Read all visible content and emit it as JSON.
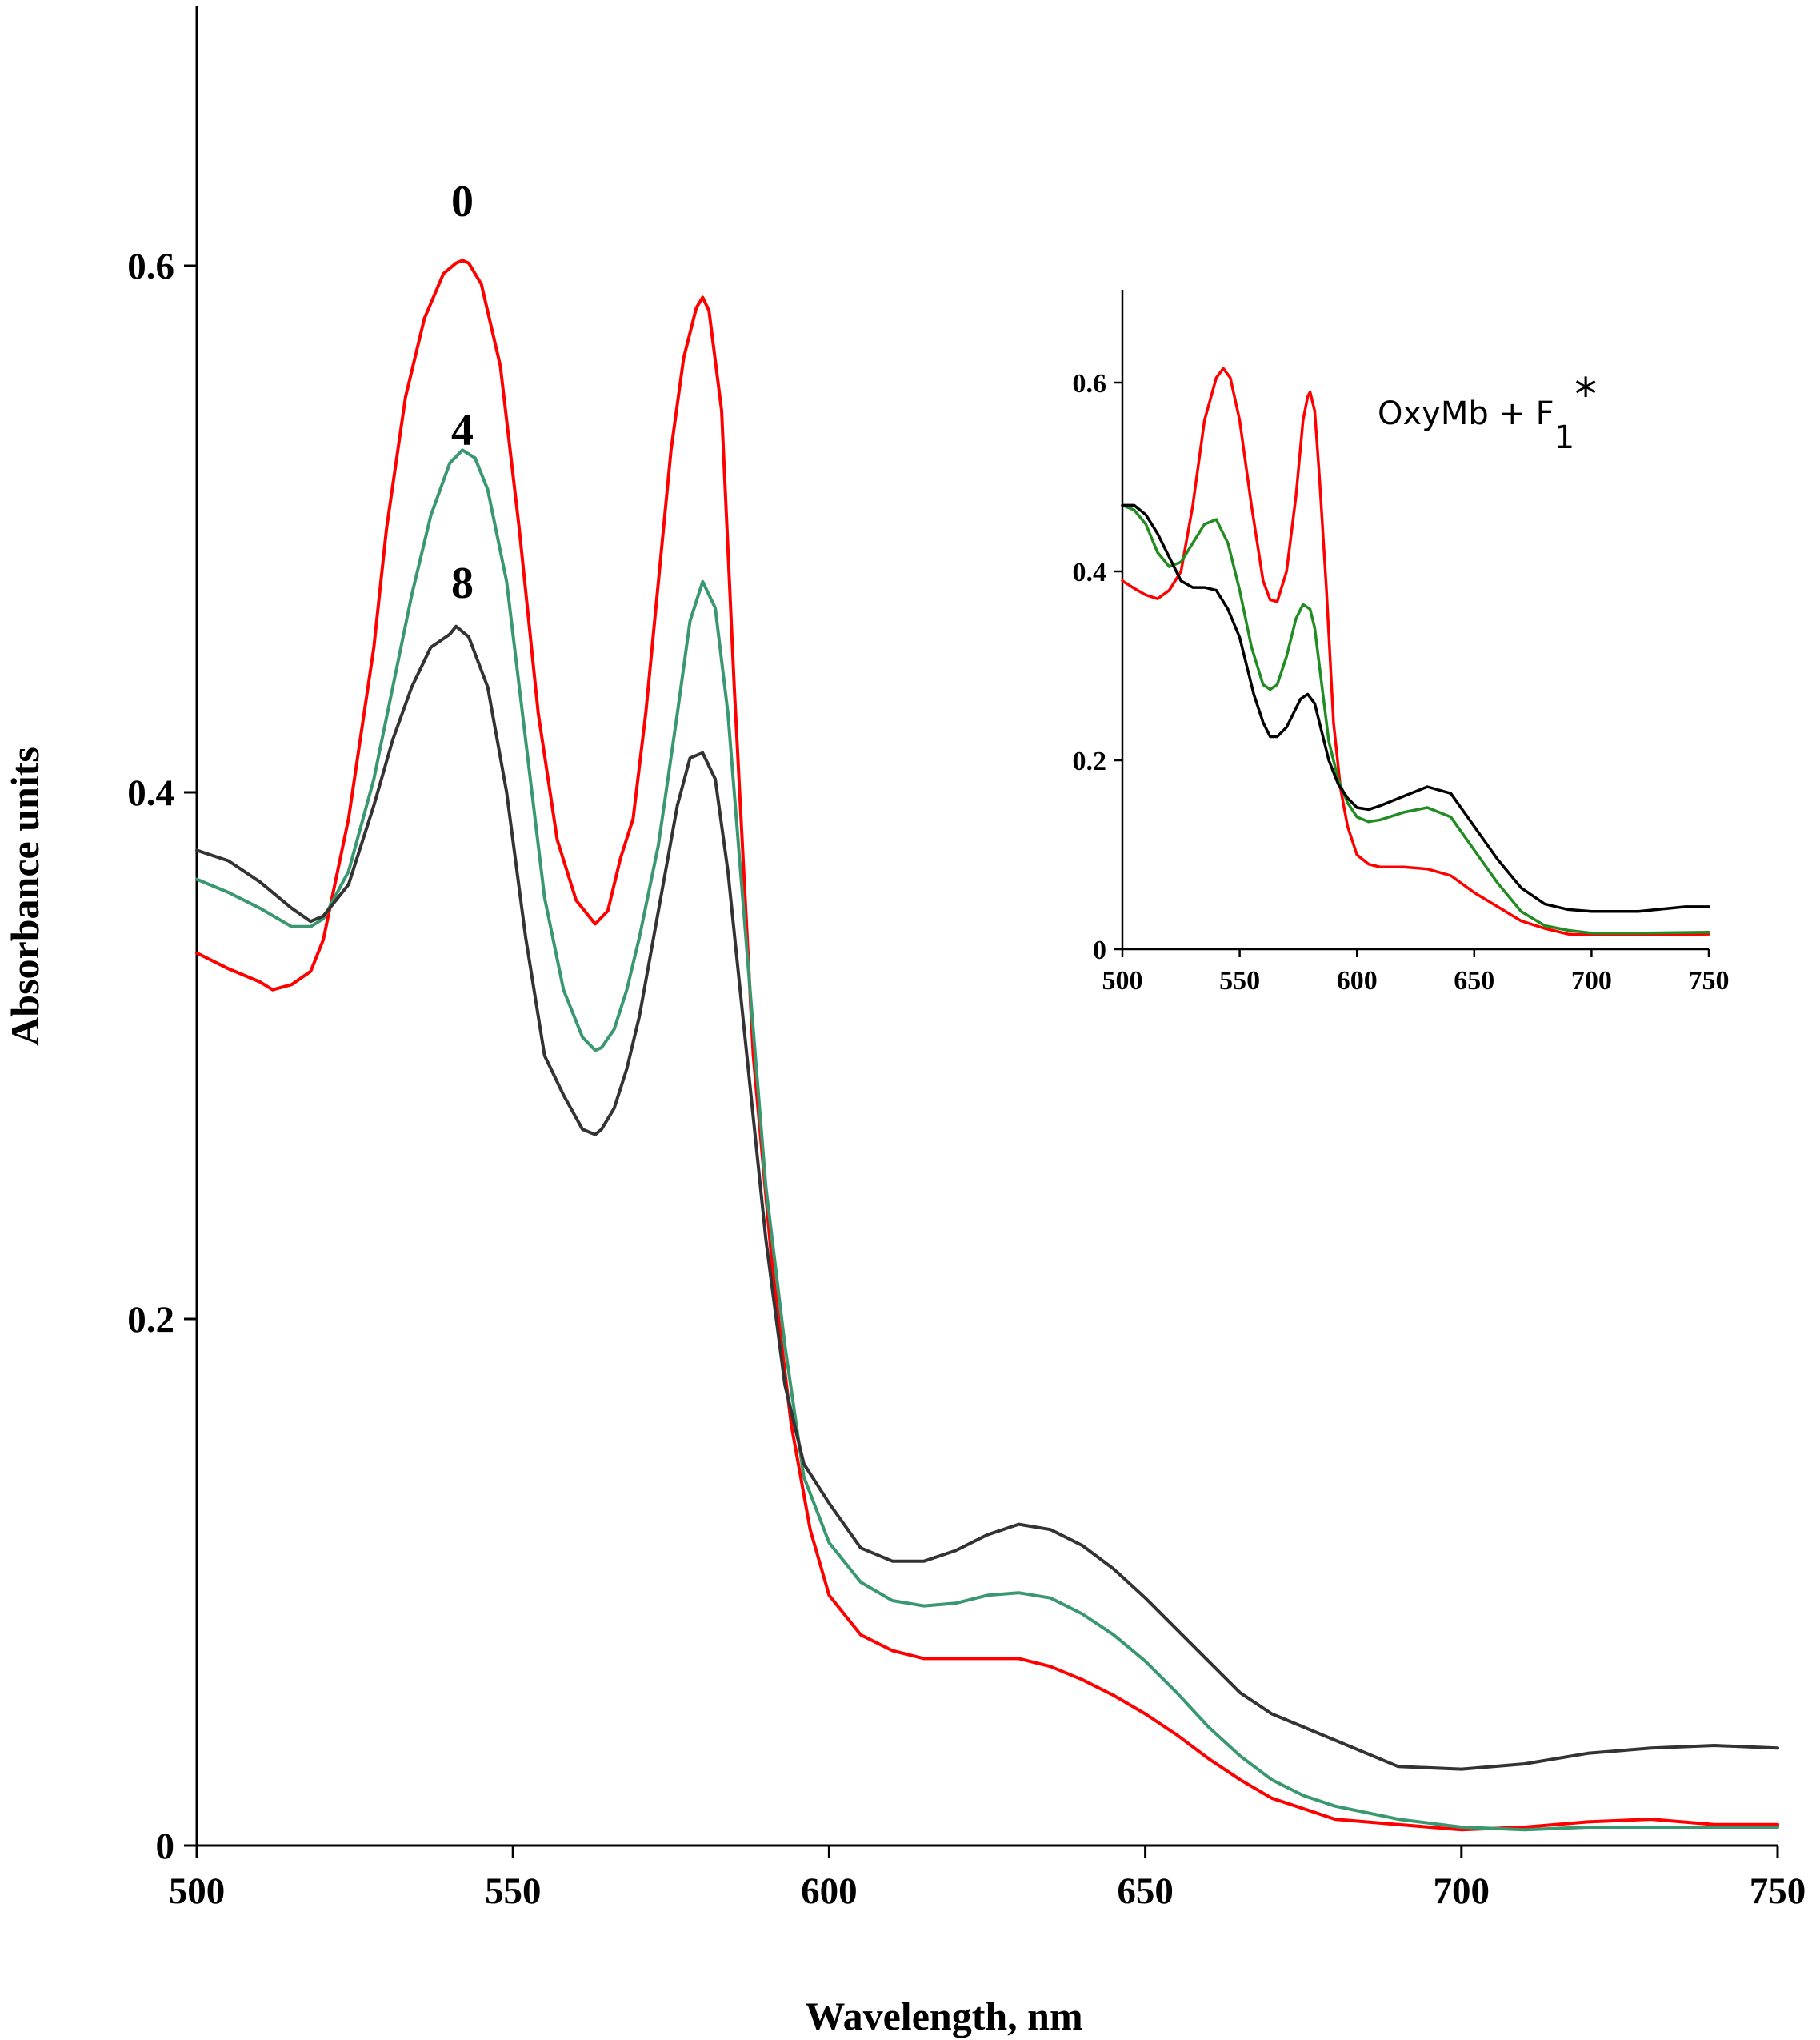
{
  "chart_data": [
    {
      "type": "line",
      "title": "",
      "xlabel": "Wavelength, nm",
      "ylabel": "Absorbance units",
      "xlim": [
        500,
        750
      ],
      "ylim": [
        0,
        0.7
      ],
      "xticks": [
        "500",
        "550",
        "600",
        "650",
        "700",
        "750"
      ],
      "yticks": [
        "0",
        "0.2",
        "0.4",
        "0.6"
      ],
      "grid": false,
      "curve_labels": [
        {
          "text": "0",
          "x": 542,
          "y": 0.625
        },
        {
          "text": "4",
          "x": 542,
          "y": 0.538
        },
        {
          "text": "8",
          "x": 542,
          "y": 0.48
        }
      ],
      "series": [
        {
          "name": "0",
          "color": "#ff0000",
          "x": [
            500,
            505,
            510,
            512,
            515,
            518,
            520,
            524,
            528,
            530,
            533,
            536,
            539,
            541,
            542,
            543,
            545,
            548,
            551,
            554,
            557,
            560,
            563,
            565,
            567,
            569,
            571,
            573,
            575,
            577,
            579,
            580,
            581,
            583,
            585,
            588,
            591,
            594,
            597,
            600,
            605,
            610,
            615,
            620,
            625,
            630,
            635,
            640,
            645,
            650,
            655,
            660,
            665,
            670,
            675,
            680,
            690,
            700,
            710,
            720,
            730,
            740,
            750
          ],
          "values": [
            0.339,
            0.333,
            0.328,
            0.325,
            0.327,
            0.332,
            0.344,
            0.39,
            0.455,
            0.5,
            0.55,
            0.58,
            0.597,
            0.601,
            0.602,
            0.601,
            0.593,
            0.562,
            0.5,
            0.43,
            0.382,
            0.359,
            0.35,
            0.355,
            0.375,
            0.39,
            0.43,
            0.48,
            0.53,
            0.565,
            0.584,
            0.588,
            0.583,
            0.545,
            0.44,
            0.3,
            0.22,
            0.16,
            0.12,
            0.095,
            0.08,
            0.074,
            0.071,
            0.071,
            0.071,
            0.071,
            0.068,
            0.063,
            0.057,
            0.05,
            0.042,
            0.033,
            0.025,
            0.018,
            0.014,
            0.01,
            0.008,
            0.006,
            0.007,
            0.009,
            0.01,
            0.008,
            0.008
          ]
        },
        {
          "name": "4",
          "color": "#3a9870",
          "x": [
            500,
            505,
            510,
            515,
            518,
            520,
            524,
            528,
            531,
            534,
            537,
            540,
            542,
            544,
            546,
            549,
            552,
            555,
            558,
            561,
            563,
            564,
            566,
            568,
            570,
            573,
            576,
            578,
            580,
            582,
            584,
            587,
            590,
            593,
            596,
            600,
            605,
            610,
            615,
            620,
            625,
            630,
            635,
            640,
            645,
            650,
            655,
            660,
            665,
            670,
            675,
            680,
            690,
            700,
            710,
            720,
            730,
            740,
            750
          ],
          "values": [
            0.367,
            0.362,
            0.356,
            0.349,
            0.349,
            0.352,
            0.37,
            0.405,
            0.44,
            0.475,
            0.505,
            0.525,
            0.53,
            0.527,
            0.515,
            0.48,
            0.42,
            0.36,
            0.325,
            0.307,
            0.302,
            0.303,
            0.31,
            0.325,
            0.345,
            0.38,
            0.43,
            0.465,
            0.48,
            0.47,
            0.43,
            0.34,
            0.25,
            0.19,
            0.14,
            0.115,
            0.1,
            0.093,
            0.091,
            0.092,
            0.095,
            0.096,
            0.094,
            0.088,
            0.08,
            0.07,
            0.058,
            0.045,
            0.034,
            0.025,
            0.019,
            0.015,
            0.01,
            0.007,
            0.006,
            0.007,
            0.007,
            0.007,
            0.007
          ]
        },
        {
          "name": "8",
          "color": "#333333",
          "x": [
            500,
            505,
            510,
            515,
            518,
            520,
            524,
            528,
            531,
            534,
            537,
            540,
            541,
            543,
            546,
            549,
            552,
            555,
            558,
            561,
            563,
            564,
            566,
            568,
            570,
            573,
            576,
            578,
            580,
            582,
            584,
            587,
            590,
            593,
            596,
            600,
            605,
            610,
            615,
            620,
            625,
            630,
            635,
            640,
            645,
            650,
            655,
            660,
            665,
            670,
            675,
            680,
            690,
            700,
            710,
            720,
            730,
            740,
            750
          ],
          "values": [
            0.378,
            0.374,
            0.366,
            0.356,
            0.351,
            0.353,
            0.365,
            0.395,
            0.42,
            0.44,
            0.455,
            0.46,
            0.463,
            0.459,
            0.44,
            0.4,
            0.345,
            0.3,
            0.285,
            0.272,
            0.27,
            0.272,
            0.28,
            0.295,
            0.315,
            0.355,
            0.395,
            0.413,
            0.415,
            0.405,
            0.37,
            0.3,
            0.23,
            0.175,
            0.145,
            0.13,
            0.113,
            0.108,
            0.108,
            0.112,
            0.118,
            0.122,
            0.12,
            0.114,
            0.105,
            0.094,
            0.082,
            0.07,
            0.058,
            0.05,
            0.045,
            0.04,
            0.03,
            0.029,
            0.031,
            0.035,
            0.037,
            0.038,
            0.037
          ]
        }
      ]
    },
    {
      "type": "line",
      "title": "OxyMb + F",
      "title_subscript": "1",
      "title_marker": "*",
      "xlim": [
        500,
        750
      ],
      "ylim": [
        0,
        0.7
      ],
      "xticks": [
        "500",
        "550",
        "600",
        "650",
        "700",
        "750"
      ],
      "yticks": [
        "0",
        "0.2",
        "0.4",
        "0.6"
      ],
      "grid": false,
      "series": [
        {
          "name": "red",
          "color": "#ff0000",
          "x": [
            500,
            505,
            510,
            515,
            520,
            525,
            530,
            535,
            540,
            543,
            546,
            550,
            555,
            560,
            563,
            566,
            570,
            574,
            577,
            579,
            580,
            582,
            584,
            587,
            590,
            593,
            596,
            600,
            605,
            610,
            620,
            630,
            640,
            650,
            660,
            670,
            680,
            690,
            700,
            720,
            750
          ],
          "values": [
            0.39,
            0.382,
            0.375,
            0.371,
            0.38,
            0.4,
            0.47,
            0.56,
            0.605,
            0.615,
            0.605,
            0.56,
            0.47,
            0.39,
            0.37,
            0.368,
            0.4,
            0.48,
            0.56,
            0.585,
            0.59,
            0.57,
            0.5,
            0.38,
            0.24,
            0.17,
            0.13,
            0.1,
            0.09,
            0.087,
            0.087,
            0.085,
            0.078,
            0.06,
            0.045,
            0.03,
            0.022,
            0.016,
            0.015,
            0.015,
            0.016
          ]
        },
        {
          "name": "green",
          "color": "#228b22",
          "x": [
            500,
            505,
            510,
            515,
            520,
            525,
            530,
            535,
            540,
            545,
            550,
            555,
            560,
            563,
            566,
            570,
            574,
            577,
            580,
            582,
            585,
            588,
            592,
            596,
            600,
            605,
            610,
            620,
            630,
            640,
            650,
            660,
            670,
            680,
            690,
            700,
            720,
            750
          ],
          "values": [
            0.47,
            0.465,
            0.45,
            0.42,
            0.405,
            0.41,
            0.43,
            0.45,
            0.455,
            0.43,
            0.38,
            0.32,
            0.28,
            0.275,
            0.28,
            0.31,
            0.35,
            0.365,
            0.36,
            0.34,
            0.28,
            0.22,
            0.18,
            0.155,
            0.14,
            0.135,
            0.137,
            0.145,
            0.15,
            0.14,
            0.105,
            0.07,
            0.04,
            0.025,
            0.02,
            0.017,
            0.017,
            0.018
          ]
        },
        {
          "name": "black",
          "color": "#000000",
          "x": [
            500,
            505,
            510,
            515,
            520,
            525,
            530,
            535,
            540,
            545,
            550,
            553,
            556,
            560,
            563,
            566,
            570,
            573,
            576,
            579,
            582,
            585,
            588,
            592,
            596,
            600,
            605,
            610,
            620,
            630,
            640,
            650,
            660,
            670,
            680,
            690,
            700,
            720,
            740,
            750
          ],
          "values": [
            0.47,
            0.47,
            0.46,
            0.44,
            0.415,
            0.39,
            0.383,
            0.383,
            0.38,
            0.36,
            0.33,
            0.3,
            0.27,
            0.24,
            0.225,
            0.225,
            0.235,
            0.25,
            0.265,
            0.27,
            0.26,
            0.23,
            0.2,
            0.175,
            0.16,
            0.15,
            0.148,
            0.152,
            0.162,
            0.172,
            0.165,
            0.13,
            0.095,
            0.065,
            0.048,
            0.042,
            0.04,
            0.04,
            0.045,
            0.045
          ]
        }
      ]
    }
  ]
}
